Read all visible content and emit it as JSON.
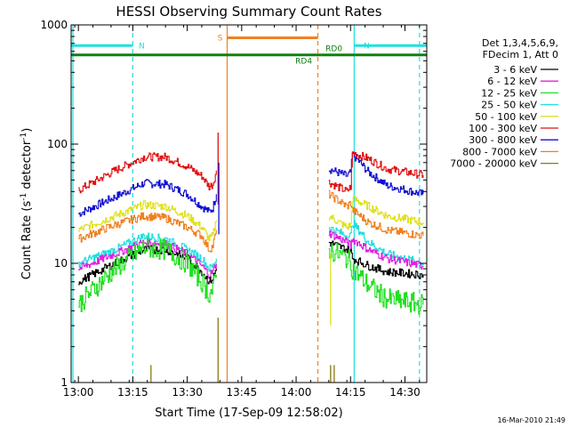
{
  "chart_data": {
    "type": "line",
    "title": "HESSI Observing Summary Count Rates",
    "xlabel": "Start Time (17-Sep-09 12:58:02)",
    "ylabel_main": "Count Rate (s",
    "ylabel_sup1": "-1",
    "ylabel_mid": " detector",
    "ylabel_sup2": "-1",
    "ylabel_end": ")",
    "y_scale": "log",
    "ylim": [
      1,
      1000
    ],
    "xlim_minutes": [
      -2,
      96
    ],
    "x_ticks": [
      {
        "label": "13:00",
        "minutes": 0
      },
      {
        "label": "13:15",
        "minutes": 15
      },
      {
        "label": "13:30",
        "minutes": 30
      },
      {
        "label": "13:45",
        "minutes": 45
      },
      {
        "label": "14:00",
        "minutes": 60
      },
      {
        "label": "14:15",
        "minutes": 75
      },
      {
        "label": "14:30",
        "minutes": 90
      }
    ],
    "y_ticks": [
      {
        "label": "1",
        "value": 1
      },
      {
        "label": "10",
        "value": 10
      },
      {
        "label": "100",
        "value": 100
      },
      {
        "label": "1000",
        "value": 1000
      }
    ],
    "legend": {
      "placement": "right",
      "header": [
        "Det 1,3,4,5,6,9,",
        "FDecim 1, Att 0"
      ],
      "entries": [
        {
          "label": "3 - 6 keV",
          "color": "#000000"
        },
        {
          "label": "6 - 12 keV",
          "color": "#e020e0"
        },
        {
          "label": "12 - 25 keV",
          "color": "#20e020"
        },
        {
          "label": "25 - 50 keV",
          "color": "#20e0e0"
        },
        {
          "label": "50 - 100 keV",
          "color": "#e0e020"
        },
        {
          "label": "100 - 300 keV",
          "color": "#e01010"
        },
        {
          "label": "300 - 800 keV",
          "color": "#1010d0"
        },
        {
          "label": "800 - 7000 keV",
          "color": "#f08020"
        },
        {
          "label": "7000 - 20000 keV",
          "color": "#8a7a10"
        }
      ]
    },
    "series": [
      {
        "color": "#1010d0",
        "segments": [
          [
            [
              0,
              26
            ],
            [
              10,
              36
            ],
            [
              18,
              47
            ],
            [
              24,
              46
            ],
            [
              30,
              38
            ],
            [
              34,
              30
            ],
            [
              36,
              27
            ],
            [
              37,
              29
            ],
            [
              38,
              38
            ]
          ],
          [
            [
              69,
              62
            ],
            [
              74,
              54
            ],
            [
              75,
              58
            ],
            [
              75.5,
              82
            ],
            [
              80,
              58
            ],
            [
              85,
              45
            ],
            [
              95,
              38
            ]
          ]
        ]
      },
      {
        "color": "#e01010",
        "segments": [
          [
            [
              0,
              41
            ],
            [
              10,
              60
            ],
            [
              18,
              78
            ],
            [
              24,
              78
            ],
            [
              30,
              65
            ],
            [
              34,
              54
            ],
            [
              36,
              44
            ],
            [
              37,
              46
            ],
            [
              38,
              60
            ]
          ],
          [
            [
              69,
              48
            ],
            [
              74,
              40
            ],
            [
              75,
              44
            ],
            [
              75.5,
              85
            ],
            [
              80,
              75
            ],
            [
              85,
              62
            ],
            [
              95,
              55
            ]
          ]
        ]
      },
      {
        "color": "#e0e020",
        "segments": [
          [
            [
              0,
              19
            ],
            [
              10,
              25
            ],
            [
              18,
              31
            ],
            [
              24,
              30
            ],
            [
              30,
              25
            ],
            [
              34,
              20
            ],
            [
              36,
              16
            ],
            [
              37,
              17
            ],
            [
              38,
              23
            ]
          ],
          [
            [
              69,
              25
            ],
            [
              74,
              20
            ],
            [
              75,
              21
            ],
            [
              75.5,
              35
            ],
            [
              80,
              30
            ],
            [
              85,
              25
            ],
            [
              95,
              22
            ]
          ]
        ]
      },
      {
        "color": "#f08020",
        "segments": [
          [
            [
              0,
              16
            ],
            [
              10,
              21
            ],
            [
              18,
              25
            ],
            [
              24,
              24
            ],
            [
              30,
              20
            ],
            [
              34,
              17
            ],
            [
              36,
              13
            ],
            [
              37,
              14
            ],
            [
              38,
              19
            ]
          ],
          [
            [
              69,
              38
            ],
            [
              74,
              30
            ],
            [
              75,
              32
            ],
            [
              75.5,
              28
            ],
            [
              80,
              22
            ],
            [
              85,
              19
            ],
            [
              95,
              17
            ]
          ]
        ]
      },
      {
        "color": "#20e0e0",
        "segments": [
          [
            [
              0,
              10
            ],
            [
              10,
              13
            ],
            [
              18,
              17
            ],
            [
              24,
              16
            ],
            [
              30,
              13
            ],
            [
              34,
              11
            ],
            [
              36,
              9
            ],
            [
              37,
              9.5
            ],
            [
              38,
              11
            ]
          ],
          [
            [
              69,
              20
            ],
            [
              74,
              17
            ],
            [
              75,
              17
            ],
            [
              75.5,
              22
            ],
            [
              80,
              15
            ],
            [
              85,
              12
            ],
            [
              95,
              10
            ]
          ]
        ]
      },
      {
        "color": "#e020e0",
        "segments": [
          [
            [
              0,
              9
            ],
            [
              10,
              12
            ],
            [
              18,
              15
            ],
            [
              24,
              14.5
            ],
            [
              30,
              12
            ],
            [
              34,
              9.5
            ],
            [
              36,
              8
            ],
            [
              37,
              8.5
            ],
            [
              38,
              10
            ]
          ],
          [
            [
              69,
              18
            ],
            [
              74,
              15
            ],
            [
              75,
              14
            ],
            [
              75.5,
              16
            ],
            [
              80,
              13
            ],
            [
              85,
              11
            ],
            [
              95,
              9.5
            ]
          ]
        ]
      },
      {
        "color": "#000000",
        "segments": [
          [
            [
              0,
              7
            ],
            [
              10,
              10
            ],
            [
              18,
              13
            ],
            [
              24,
              13
            ],
            [
              30,
              11
            ],
            [
              34,
              8.5
            ],
            [
              36,
              7
            ],
            [
              37,
              7.5
            ],
            [
              38,
              9
            ]
          ],
          [
            [
              69,
              15
            ],
            [
              74,
              13
            ],
            [
              75,
              12.5
            ],
            [
              75.5,
              11
            ],
            [
              80,
              9.5
            ],
            [
              85,
              8.5
            ],
            [
              95,
              8
            ]
          ]
        ]
      },
      {
        "color": "#20e020",
        "segments": [
          [
            [
              0,
              4.5
            ],
            [
              4,
              6
            ],
            [
              10,
              9
            ],
            [
              18,
              13.5
            ],
            [
              24,
              13
            ],
            [
              30,
              10
            ],
            [
              34,
              7
            ],
            [
              36,
              5.5
            ],
            [
              37,
              6
            ],
            [
              38,
              8
            ]
          ],
          [
            [
              69,
              13
            ],
            [
              74,
              11
            ],
            [
              75,
              10
            ],
            [
              75.5,
              9
            ],
            [
              80,
              6.5
            ],
            [
              85,
              5
            ],
            [
              95,
              4.5
            ]
          ]
        ]
      }
    ],
    "segment_markers": [
      {
        "label": "N",
        "color": "#20e0e0",
        "value": 670,
        "x_start": -2,
        "x_end": 15
      },
      {
        "label": "N",
        "color": "#20e0e0",
        "value": 670,
        "x_start": 76,
        "x_end": 96
      },
      {
        "label": "S",
        "color": "#f08020",
        "value": 780,
        "x_start": 41,
        "x_end": 66
      },
      {
        "label": "RD4",
        "color": "#108010",
        "value": 560,
        "x_start": -2,
        "x_end": 67
      },
      {
        "label": "RD0",
        "color": "#108010",
        "value": 560,
        "x_start": 67,
        "x_end": 96
      }
    ],
    "vertical_markers": [
      {
        "minutes": -1.5,
        "color": "#20e0e0",
        "style": "solid"
      },
      {
        "minutes": 15,
        "color": "#20e0e0",
        "style": "dashed"
      },
      {
        "minutes": 41,
        "color": "#f08020",
        "style": "solid"
      },
      {
        "minutes": 66,
        "color": "#f08020",
        "style": "dashed"
      },
      {
        "minutes": 76,
        "color": "#20e0e0",
        "style": "solid"
      },
      {
        "minutes": 94,
        "color": "#20e0e0",
        "style": "dashed"
      }
    ],
    "spikes": [
      {
        "minutes": 38.5,
        "value": 125,
        "color": "#e01010"
      },
      {
        "minutes": 38.7,
        "value": 70,
        "color": "#1010d0"
      },
      {
        "minutes": 69.5,
        "value": 12,
        "color": "#e0e020"
      }
    ],
    "bursts": [
      {
        "minutes": 20,
        "value": 1.4,
        "color": "#8a7a10"
      },
      {
        "minutes": 38.5,
        "value": 3.5,
        "color": "#8a7a10"
      },
      {
        "minutes": 69.5,
        "value": 1.4,
        "color": "#8a7a10"
      },
      {
        "minutes": 70.5,
        "value": 1.4,
        "color": "#8a7a10"
      }
    ]
  },
  "footer": {
    "timestamp": "16-Mar-2010 21:49"
  }
}
